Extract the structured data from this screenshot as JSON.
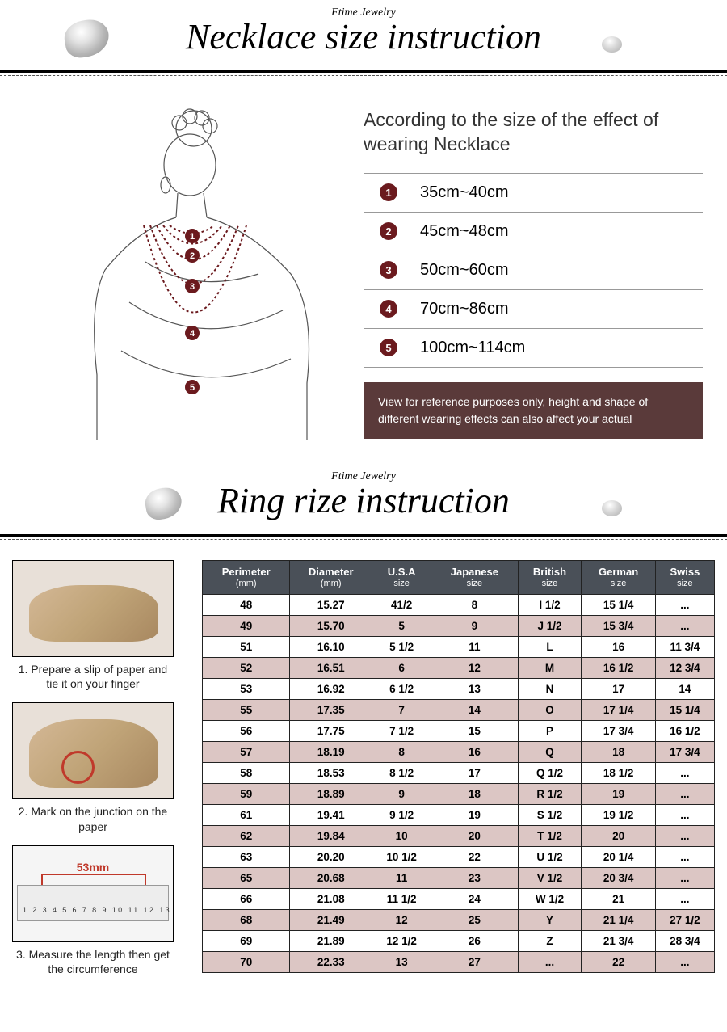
{
  "brand": "Ftime Jewelry",
  "necklace": {
    "title": "Necklace size instruction",
    "heading": "According to the size of the effect of wearing Necklace",
    "sizes": [
      {
        "n": "1",
        "range": "35cm~40cm"
      },
      {
        "n": "2",
        "range": "45cm~48cm"
      },
      {
        "n": "3",
        "range": "50cm~60cm"
      },
      {
        "n": "4",
        "range": "70cm~86cm"
      },
      {
        "n": "5",
        "range": "100cm~114cm"
      }
    ],
    "disclaimer": "View for reference purposes only, height and shape of different wearing effects can also affect your actual",
    "badge_bg": "#6b1a1e",
    "disclaimer_bg": "#5a3a3a"
  },
  "ring": {
    "title": "Ring rize instruction",
    "steps": [
      {
        "text": "1. Prepare a slip of paper and tie it on your finger"
      },
      {
        "text": "2. Mark on the junction on the paper"
      },
      {
        "text": "3. Measure the length then get the circumference",
        "ruler_label": "53mm"
      }
    ],
    "table": {
      "header_bg": "#4a5058",
      "alt_row_bg": "#dcc6c4",
      "columns": [
        {
          "label": "Perimeter",
          "sub": "(mm)"
        },
        {
          "label": "Diameter",
          "sub": "(mm)"
        },
        {
          "label": "U.S.A",
          "sub": "size"
        },
        {
          "label": "Japanese",
          "sub": "size"
        },
        {
          "label": "British",
          "sub": "size"
        },
        {
          "label": "German",
          "sub": "size"
        },
        {
          "label": "Swiss",
          "sub": "size"
        }
      ],
      "rows": [
        [
          "48",
          "15.27",
          "41/2",
          "8",
          "I 1/2",
          "15 1/4",
          "..."
        ],
        [
          "49",
          "15.70",
          "5",
          "9",
          "J 1/2",
          "15 3/4",
          "..."
        ],
        [
          "51",
          "16.10",
          "5 1/2",
          "11",
          "L",
          "16",
          "11 3/4"
        ],
        [
          "52",
          "16.51",
          "6",
          "12",
          "M",
          "16 1/2",
          "12 3/4"
        ],
        [
          "53",
          "16.92",
          "6 1/2",
          "13",
          "N",
          "17",
          "14"
        ],
        [
          "55",
          "17.35",
          "7",
          "14",
          "O",
          "17 1/4",
          "15 1/4"
        ],
        [
          "56",
          "17.75",
          "7 1/2",
          "15",
          "P",
          "17 3/4",
          "16 1/2"
        ],
        [
          "57",
          "18.19",
          "8",
          "16",
          "Q",
          "18",
          "17 3/4"
        ],
        [
          "58",
          "18.53",
          "8 1/2",
          "17",
          "Q  1/2",
          "18 1/2",
          "..."
        ],
        [
          "59",
          "18.89",
          "9",
          "18",
          "R 1/2",
          "19",
          "..."
        ],
        [
          "61",
          "19.41",
          "9 1/2",
          "19",
          "S 1/2",
          "19 1/2",
          "..."
        ],
        [
          "62",
          "19.84",
          "10",
          "20",
          "T 1/2",
          "20",
          "..."
        ],
        [
          "63",
          "20.20",
          "10 1/2",
          "22",
          "U 1/2",
          "20 1/4",
          "..."
        ],
        [
          "65",
          "20.68",
          "11",
          "23",
          "V 1/2",
          "20 3/4",
          "..."
        ],
        [
          "66",
          "21.08",
          "11 1/2",
          "24",
          "W 1/2",
          "21",
          "..."
        ],
        [
          "68",
          "21.49",
          "12",
          "25",
          "Y",
          "21 1/4",
          "27 1/2"
        ],
        [
          "69",
          "21.89",
          "12 1/2",
          "26",
          "Z",
          "21 3/4",
          "28 3/4"
        ],
        [
          "70",
          "22.33",
          "13",
          "27",
          "...",
          "22",
          "..."
        ]
      ]
    }
  }
}
